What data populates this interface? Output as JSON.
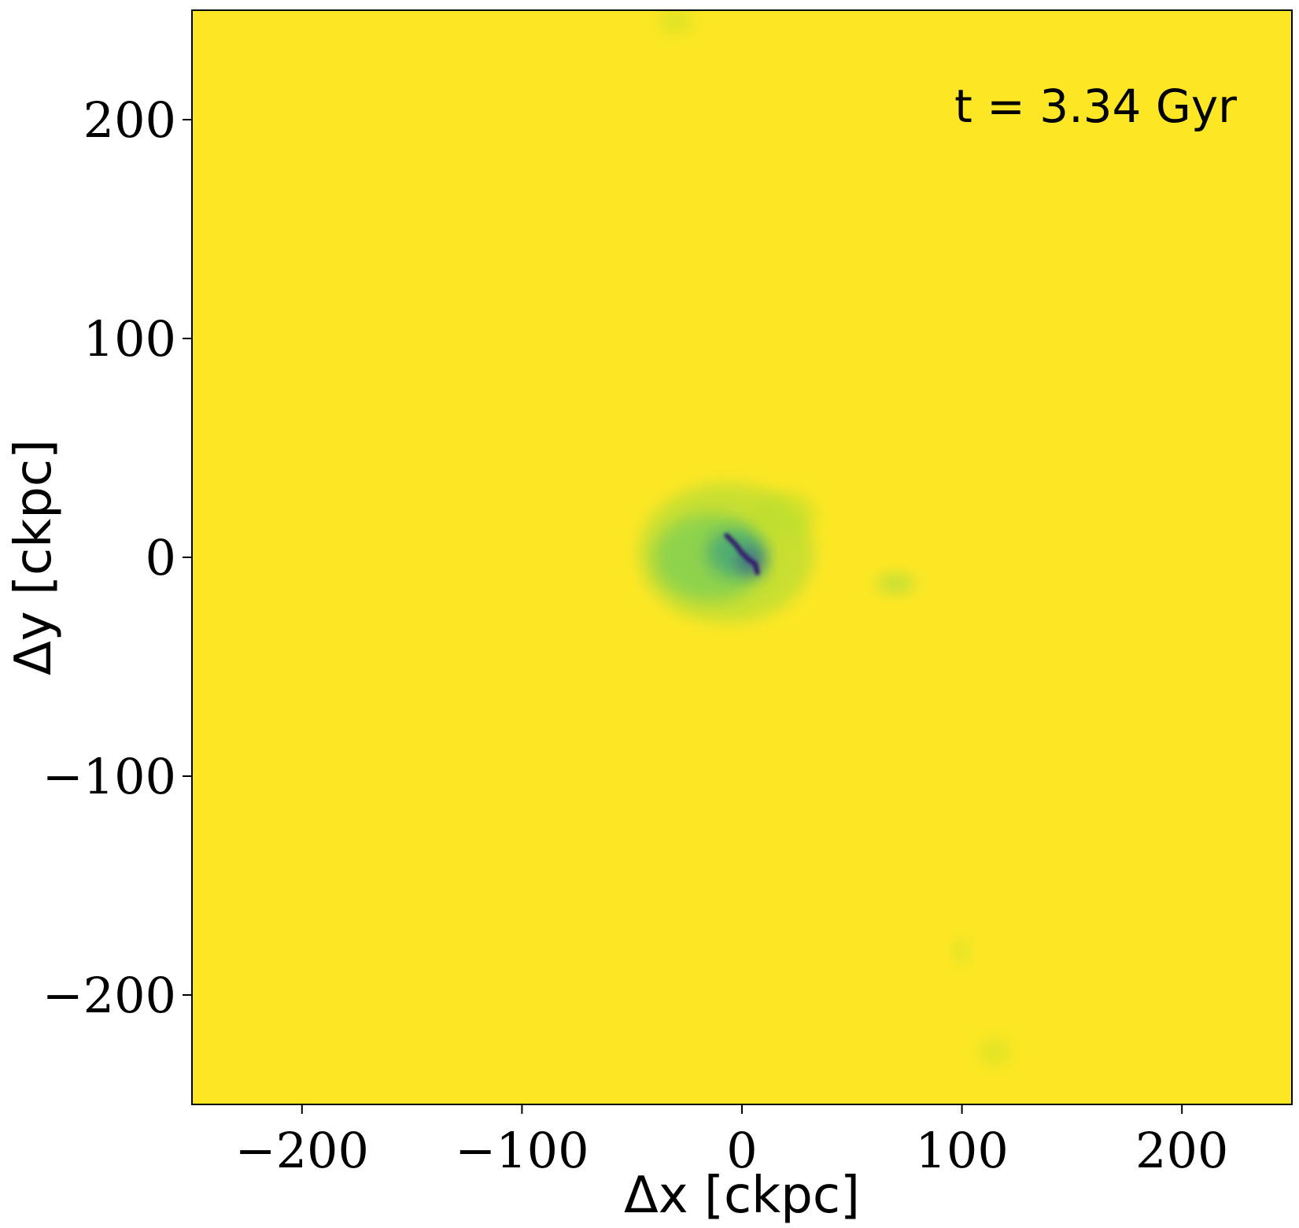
{
  "chart_data": {
    "type": "heatmap",
    "title": "",
    "annotation": "t = 3.34 Gyr",
    "xlabel": "Δx [ckpc]",
    "ylabel": "Δy [ckpc]",
    "xlim": [
      -250,
      250
    ],
    "ylim": [
      -250,
      250
    ],
    "xticks": [
      -200,
      -100,
      0,
      100,
      200
    ],
    "yticks": [
      200,
      100,
      0,
      -100,
      -200
    ],
    "xtick_labels": [
      "−200",
      "−100",
      "0",
      "100",
      "200"
    ],
    "ytick_labels": [
      "200",
      "100",
      "0",
      "−100",
      "−200"
    ],
    "grid": false,
    "colormap": "viridis",
    "background_color": "#fde725",
    "features": [
      {
        "x": -7,
        "y": 2,
        "rx": 40,
        "ry": 32,
        "color": "#9fd938",
        "opacity": 0.55
      },
      {
        "x": -14,
        "y": 0,
        "rx": 26,
        "ry": 20,
        "color": "#5ec962",
        "opacity": 0.55
      },
      {
        "x": -3,
        "y": 2,
        "rx": 13,
        "ry": 11,
        "color": "#21918c",
        "opacity": 0.55
      },
      {
        "x": 4,
        "y": -2,
        "rx": 6,
        "ry": 6,
        "color": "#3b528b",
        "opacity": 0.7
      },
      {
        "x": 20,
        "y": 20,
        "rx": 14,
        "ry": 10,
        "color": "#b5de2b",
        "opacity": 0.5
      },
      {
        "x": 70,
        "y": -12,
        "rx": 9,
        "ry": 4,
        "color": "#8fd744",
        "opacity": 0.6
      },
      {
        "x": 100,
        "y": -180,
        "rx": 3,
        "ry": 5,
        "color": "#b5de2b",
        "opacity": 0.6
      },
      {
        "x": 115,
        "y": -226,
        "rx": 7,
        "ry": 6,
        "color": "#c2df23",
        "opacity": 0.5
      },
      {
        "x": -30,
        "y": 245,
        "rx": 8,
        "ry": 6,
        "color": "#c2df23",
        "opacity": 0.5
      }
    ],
    "filament": {
      "points": [
        [
          -7,
          10
        ],
        [
          -3,
          6
        ],
        [
          0,
          2
        ],
        [
          3,
          -1
        ],
        [
          6,
          -3
        ],
        [
          7,
          -7
        ]
      ],
      "color": "#30196b"
    }
  }
}
